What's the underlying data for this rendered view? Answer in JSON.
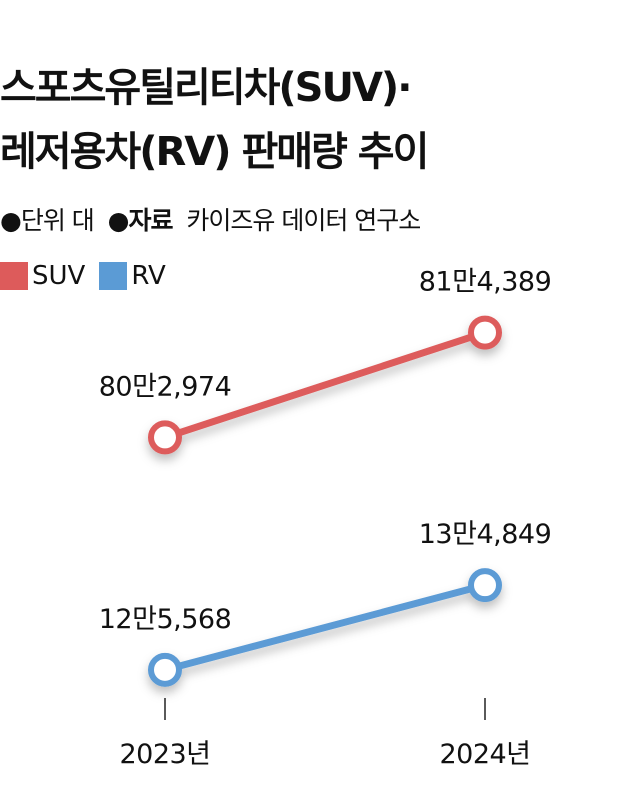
{
  "title_line1": "스포츠유틸리티차(SUV)·",
  "title_line2": "레저용차(RV) 판매량 추이",
  "unit_label": "●단위 대",
  "source_label": "●자료",
  "source_value": "카이즈유 데이터 연구소",
  "colors": {
    "suv": "#dd5b5b",
    "rv": "#5b9bd5"
  },
  "chart_data": {
    "type": "line",
    "categories": [
      "2023년",
      "2024년"
    ],
    "series": [
      {
        "name": "SUV",
        "values": [
          802974,
          814389
        ],
        "labels": [
          "80만2,974",
          "81만4,389"
        ]
      },
      {
        "name": "RV",
        "values": [
          125568,
          134849
        ],
        "labels": [
          "12만5,568",
          "13만4,849"
        ]
      }
    ],
    "legend": "top-left",
    "grid": false
  }
}
